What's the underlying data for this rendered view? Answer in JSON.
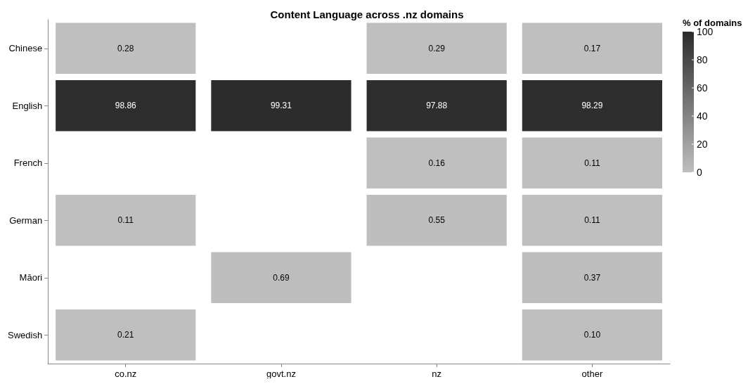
{
  "chart_data": {
    "type": "heatmap",
    "title": "Content Language across .nz domains",
    "clabel": "% of domains",
    "categories": [
      "co.nz",
      "govt.nz",
      "nz",
      "other"
    ],
    "y_categories": [
      "Chinese",
      "English",
      "French",
      "German",
      "Māori",
      "Swedish"
    ],
    "cells": [
      [
        0.28,
        null,
        0.29,
        0.17
      ],
      [
        98.86,
        99.31,
        97.88,
        98.29
      ],
      [
        null,
        null,
        0.16,
        0.11
      ],
      [
        0.11,
        null,
        0.55,
        0.11
      ],
      [
        null,
        0.69,
        null,
        0.37
      ],
      [
        0.21,
        null,
        null,
        0.1
      ]
    ],
    "cell_labels": [
      [
        "0.28",
        null,
        "0.29",
        "0.17"
      ],
      [
        "98.86",
        "99.31",
        "97.88",
        "98.29"
      ],
      [
        null,
        null,
        "0.16",
        "0.11"
      ],
      [
        "0.11",
        null,
        "0.55",
        "0.11"
      ],
      [
        null,
        "0.69",
        null,
        "0.37"
      ],
      [
        "0.21",
        null,
        null,
        "0.10"
      ]
    ],
    "clim": [
      0,
      100
    ],
    "cticks": [
      0,
      20,
      40,
      60,
      80,
      100
    ]
  }
}
